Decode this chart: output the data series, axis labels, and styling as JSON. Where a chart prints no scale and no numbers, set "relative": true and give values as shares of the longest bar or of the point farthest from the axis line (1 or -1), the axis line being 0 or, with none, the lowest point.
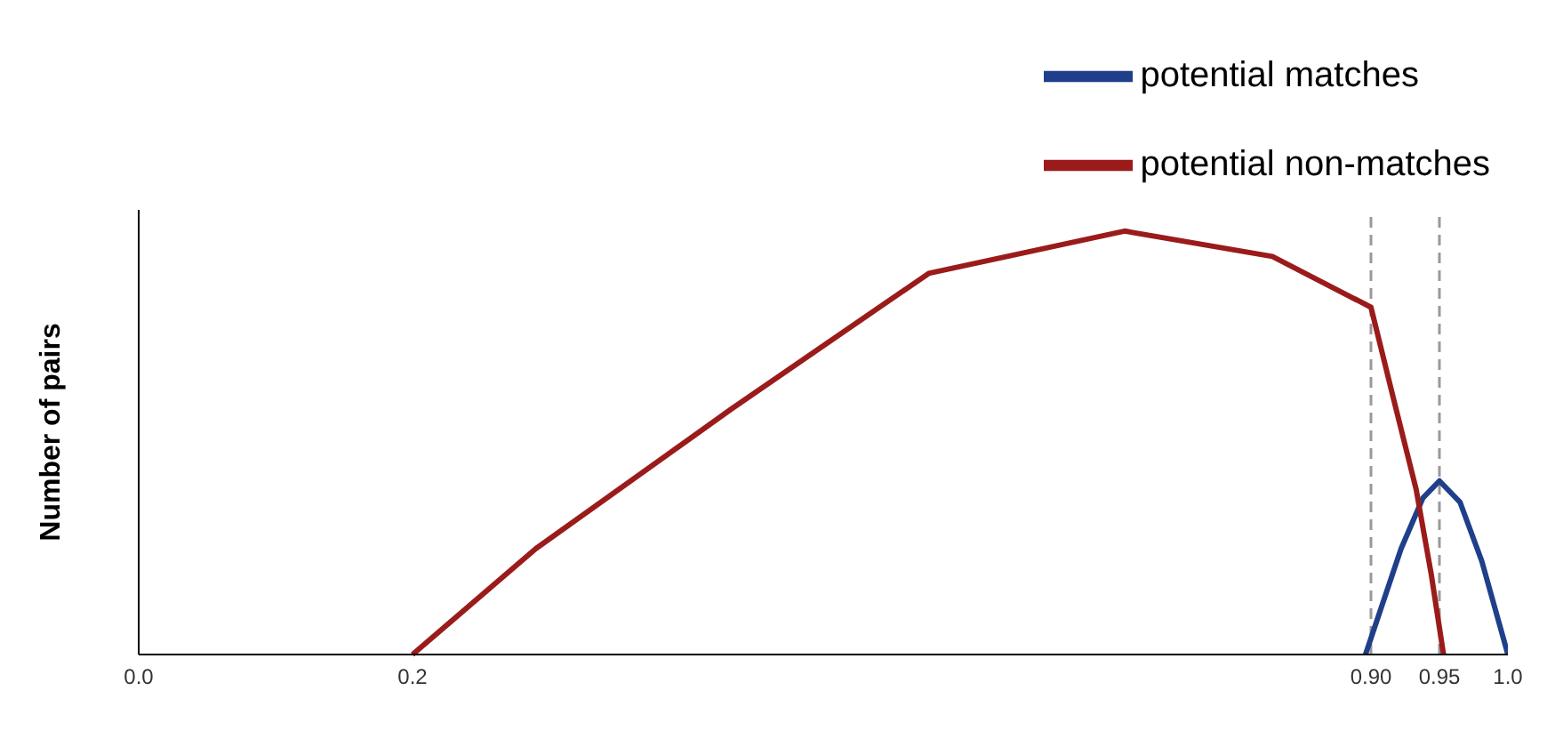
{
  "chart_data": {
    "type": "line",
    "ylabel": "Number of pairs",
    "relative": true,
    "xlim": [
      0,
      1
    ],
    "xticks": [
      {
        "value": 0,
        "label": "0.0"
      },
      {
        "value": 0.2,
        "label": "0.2"
      },
      {
        "value": 0.9,
        "label": "0.90"
      },
      {
        "value": 0.95,
        "label": "0.95"
      },
      {
        "value": 1,
        "label": "1.0"
      }
    ],
    "series": [
      {
        "name": "potential  matches",
        "color": "#1f3f8a",
        "x": [
          0.896,
          0.922,
          0.938,
          0.95,
          0.965,
          0.981,
          1.0
        ],
        "values": [
          0,
          0.25,
          0.37,
          0.41,
          0.36,
          0.22,
          0
        ]
      },
      {
        "name": "potential  non-matches",
        "color": "#9b1b1b",
        "x": [
          0.2,
          0.29,
          0.433,
          0.577,
          0.72,
          0.828,
          0.9,
          0.916,
          0.933,
          0.944,
          0.953
        ],
        "values": [
          0,
          0.25,
          0.58,
          0.9,
          1,
          0.94,
          0.82,
          0.61,
          0.39,
          0.19,
          0
        ]
      }
    ],
    "ref_lines": [
      {
        "axis": "x",
        "value": 0.9,
        "color": "#999999",
        "line_style": "dashed"
      },
      {
        "axis": "x",
        "value": 0.95,
        "color": "#999999",
        "line_style": "dashed"
      }
    ],
    "legend": "top right",
    "grid": false,
    "marker": "none",
    "line_style": "solid"
  }
}
